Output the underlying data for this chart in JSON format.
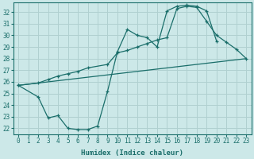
{
  "xlabel": "Humidex (Indice chaleur)",
  "bg_color": "#cce8e8",
  "grid_color": "#b0d0d0",
  "line_color": "#1a6e6a",
  "xlim": [
    -0.5,
    23.5
  ],
  "ylim": [
    21.5,
    32.8
  ],
  "xticks": [
    0,
    1,
    2,
    3,
    4,
    5,
    6,
    7,
    8,
    9,
    10,
    11,
    12,
    13,
    14,
    15,
    16,
    17,
    18,
    19,
    20,
    21,
    22,
    23
  ],
  "yticks": [
    22,
    23,
    24,
    25,
    26,
    27,
    28,
    29,
    30,
    31,
    32
  ],
  "line1_x": [
    0,
    23
  ],
  "line1_y": [
    25.7,
    28.0
  ],
  "line2_x": [
    0,
    2,
    3,
    4,
    5,
    6,
    7,
    9,
    10,
    11,
    12,
    13,
    14,
    15,
    16,
    17,
    18,
    19,
    20,
    21,
    22,
    23
  ],
  "line2_y": [
    25.7,
    25.9,
    26.2,
    26.5,
    26.7,
    26.9,
    27.2,
    27.5,
    28.5,
    28.7,
    29.0,
    29.3,
    29.6,
    29.8,
    32.3,
    32.5,
    32.4,
    31.2,
    30.0,
    29.4,
    28.8,
    28.0
  ],
  "line3_x": [
    0,
    2,
    3,
    4,
    5,
    6,
    7,
    8,
    9,
    10,
    11,
    12,
    13,
    14,
    15,
    16,
    17,
    18,
    19,
    20
  ],
  "line3_y": [
    25.7,
    24.7,
    22.9,
    23.1,
    22.0,
    21.9,
    21.9,
    22.2,
    25.2,
    28.6,
    30.5,
    30.0,
    29.8,
    29.0,
    32.1,
    32.5,
    32.6,
    32.5,
    32.1,
    29.5
  ]
}
